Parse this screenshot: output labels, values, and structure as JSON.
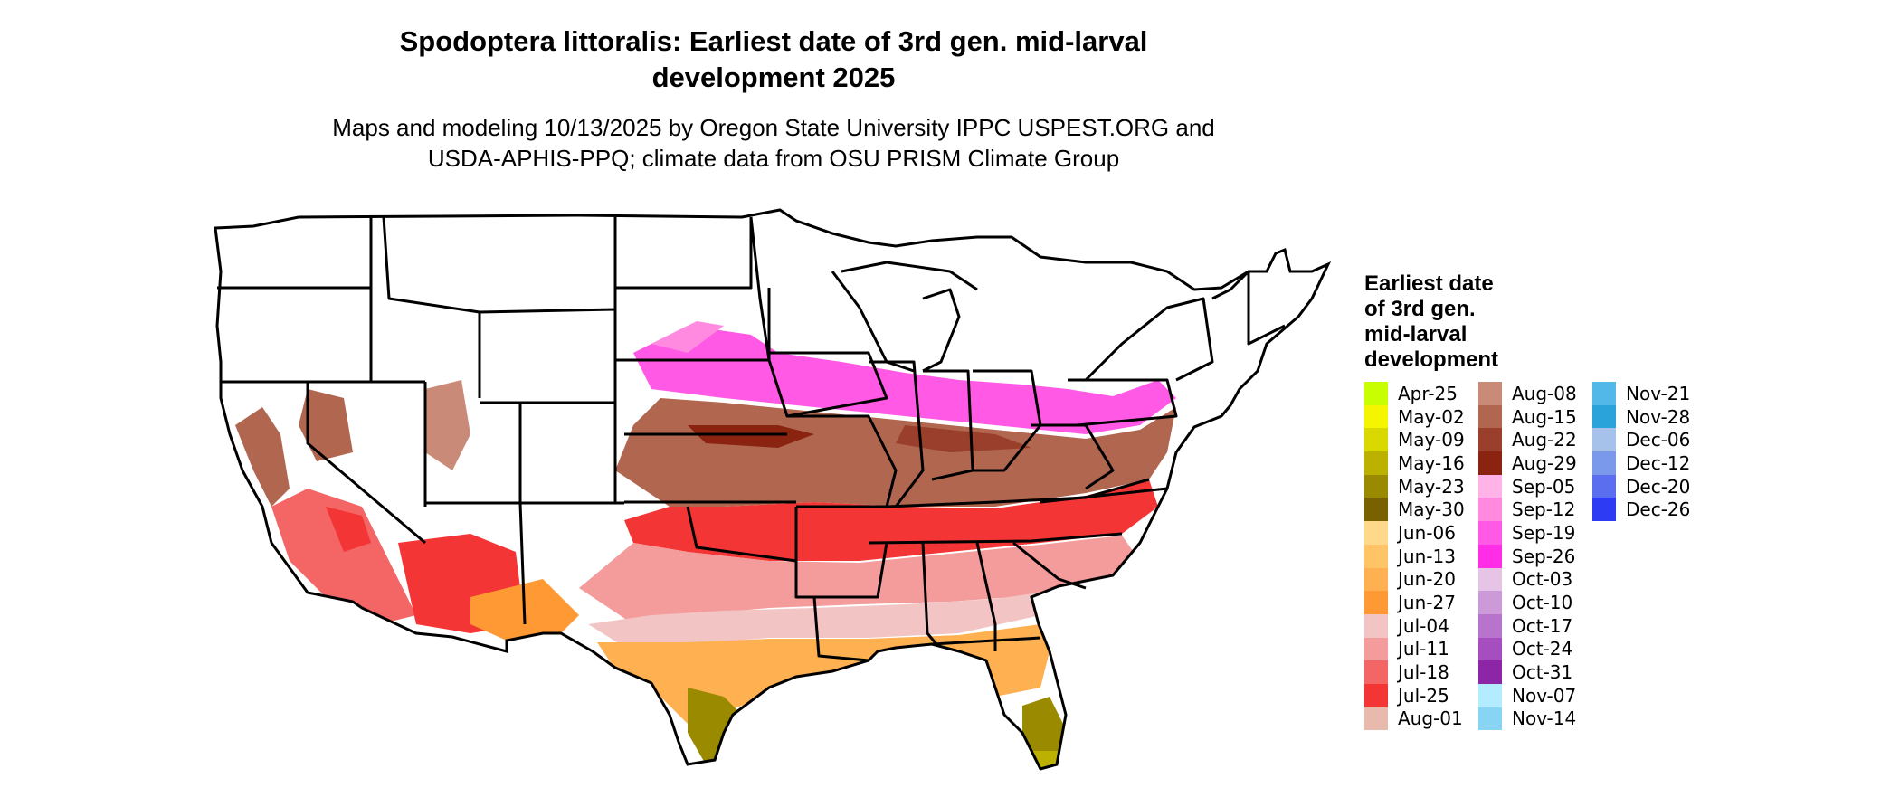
{
  "title": {
    "line1": "Spodoptera littoralis: Earliest date of 3rd gen. mid-larval",
    "line2": "development 2025"
  },
  "subtitle": {
    "line1": "Maps and modeling 10/13/2025 by Oregon State University IPPC USPEST.ORG and",
    "line2": "USDA-APHIS-PPQ; climate data from OSU PRISM Climate Group"
  },
  "legend": {
    "title_lines": [
      "Earliest date",
      "of 3rd gen.",
      "mid-larval",
      "development"
    ],
    "items": [
      {
        "label": "Apr-25",
        "color": "#c8ff00"
      },
      {
        "label": "May-02",
        "color": "#f5f500"
      },
      {
        "label": "May-09",
        "color": "#d9d900"
      },
      {
        "label": "May-16",
        "color": "#bdb100"
      },
      {
        "label": "May-23",
        "color": "#9a8a00"
      },
      {
        "label": "May-30",
        "color": "#7a6100"
      },
      {
        "label": "Jun-06",
        "color": "#ffd98a"
      },
      {
        "label": "Jun-13",
        "color": "#ffc466"
      },
      {
        "label": "Jun-20",
        "color": "#ffb050"
      },
      {
        "label": "Jun-27",
        "color": "#ff9933"
      },
      {
        "label": "Jul-04",
        "color": "#f3c4c4"
      },
      {
        "label": "Jul-11",
        "color": "#f49b9b"
      },
      {
        "label": "Jul-18",
        "color": "#f46565"
      },
      {
        "label": "Jul-25",
        "color": "#f43535"
      },
      {
        "label": "Aug-01",
        "color": "#e8b9ad"
      },
      {
        "label": "Aug-08",
        "color": "#c98a78"
      },
      {
        "label": "Aug-15",
        "color": "#b0664f"
      },
      {
        "label": "Aug-22",
        "color": "#993f2b"
      },
      {
        "label": "Aug-29",
        "color": "#8a2310"
      },
      {
        "label": "Sep-05",
        "color": "#ffb3e6"
      },
      {
        "label": "Sep-12",
        "color": "#ff8ae0"
      },
      {
        "label": "Sep-19",
        "color": "#ff59e6"
      },
      {
        "label": "Sep-26",
        "color": "#ff2ee6"
      },
      {
        "label": "Oct-03",
        "color": "#e6c4e6"
      },
      {
        "label": "Oct-10",
        "color": "#cc99d9"
      },
      {
        "label": "Oct-17",
        "color": "#b873cc"
      },
      {
        "label": "Oct-24",
        "color": "#a64dbf"
      },
      {
        "label": "Oct-31",
        "color": "#8c26a6"
      },
      {
        "label": "Nov-07",
        "color": "#b3ecff"
      },
      {
        "label": "Nov-14",
        "color": "#87d4f5"
      },
      {
        "label": "Nov-21",
        "color": "#52b8e8"
      },
      {
        "label": "Nov-28",
        "color": "#29a3d9"
      },
      {
        "label": "Dec-06",
        "color": "#a6c2eb"
      },
      {
        "label": "Dec-12",
        "color": "#7a99eb"
      },
      {
        "label": "Dec-20",
        "color": "#5c6ef0"
      },
      {
        "label": "Dec-26",
        "color": "#2e3bf5"
      }
    ]
  },
  "map": {
    "region": "contiguous-united-states",
    "boundary_color": "#000000",
    "no_data_color": "#ffffff"
  }
}
